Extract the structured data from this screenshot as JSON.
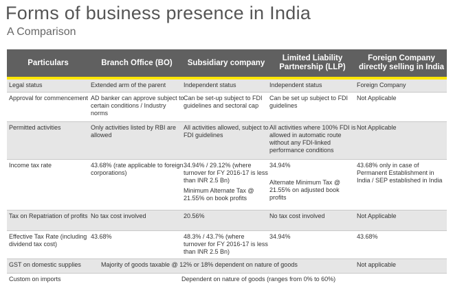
{
  "title": "Forms of business presence in India",
  "subtitle": "A Comparison",
  "accent_color": "#ffe600",
  "header_color": "#606060",
  "columns": [
    "Particulars",
    "Branch Office  (BO)",
    "Subsidiary company",
    "Limited Liability Partnership (LLP)",
    "Foreign Company directly selling in India"
  ],
  "rows": [
    {
      "label": "Legal status",
      "bo": "Extended arm of the parent",
      "sub": "Independent status",
      "llp": "Independent status",
      "fc": "Foreign Company"
    },
    {
      "label": "Approval for commencement",
      "bo": "AD banker can approve subject to certain conditions / Industry norms",
      "sub": "Can be set-up subject to FDI guidelines and sectoral cap",
      "llp": "Can be set up subject to FDI guidelines",
      "fc": "Not Applicable"
    },
    {
      "label": "Permitted activities",
      "bo": "Only activities listed by RBI are allowed",
      "sub": "All activities allowed, subject to FDI guidelines",
      "llp": "All activities where 100% FDI is allowed in automatic route without any FDI-linked performance conditions",
      "fc": "Not Applicable"
    },
    {
      "label": "Income tax rate",
      "bo": "43.68% (rate applicable to foreign corporations)",
      "sub": "34.94% / 29.12% (where turnover for FY 2016-17 is less than INR 2.5 Bn)",
      "sub_extra": "Minimum Alternate Tax @ 21.55% on book profits",
      "llp": "34.94%",
      "llp_extra": "Alternate Minimum Tax @ 21.55% on adjusted book profits",
      "fc": "43.68% only in case of Permanent Establishment in India / SEP established in India"
    },
    {
      "label": "Tax on Repatriation of profits",
      "bo": "No tax cost involved",
      "sub": "20.56%",
      "llp": "No tax cost involved",
      "fc": "Not Applicable"
    },
    {
      "label": "Effective Tax Rate (including dividend tax cost)",
      "bo": "43.68%",
      "sub": "48.3% / 43.7% (where turnover for FY 2016-17 is less than INR 2.5 Bn)",
      "llp": "34.94%",
      "fc": "43.68%"
    },
    {
      "label": "GST on domestic supplies",
      "span": "Majority of goods taxable @ 12% or 18% dependent on nature of goods",
      "fc": "Not applicable"
    },
    {
      "label": "Custom on imports",
      "span": "Dependent on nature of goods (ranges from 0% to 60%)"
    }
  ]
}
